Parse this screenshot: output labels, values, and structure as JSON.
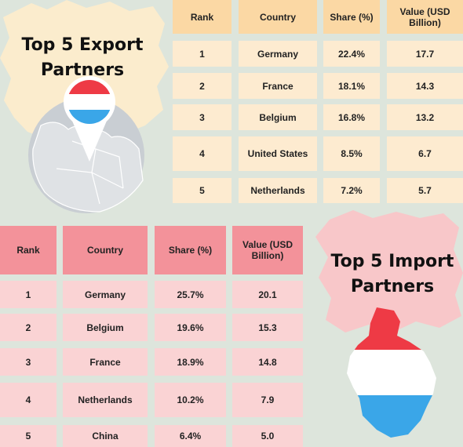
{
  "export": {
    "title_line1": "Top 5 Export",
    "title_line2": "Partners",
    "headers": [
      "Rank",
      "Country",
      "Share (%)",
      "Value (USD Billion)"
    ],
    "rows": [
      [
        "1",
        "Germany",
        "22.4%",
        "17.7"
      ],
      [
        "2",
        "France",
        "18.1%",
        "14.3"
      ],
      [
        "3",
        "Belgium",
        "16.8%",
        "13.2"
      ],
      [
        "4",
        "United States",
        "8.5%",
        "6.7"
      ],
      [
        "5",
        "Netherlands",
        "7.2%",
        "5.7"
      ]
    ]
  },
  "import": {
    "title_line1": "Top 5 Import",
    "title_line2": "Partners",
    "headers": [
      "Rank",
      "Country",
      "Share (%)",
      "Value (USD Billion)"
    ],
    "rows": [
      [
        "1",
        "Germany",
        "25.7%",
        "20.1"
      ],
      [
        "2",
        "Belgium",
        "19.6%",
        "15.3"
      ],
      [
        "3",
        "France",
        "18.9%",
        "14.8"
      ],
      [
        "4",
        "Netherlands",
        "10.2%",
        "7.9"
      ],
      [
        "5",
        "China",
        "6.4%",
        "5.0"
      ]
    ]
  },
  "colors": {
    "background": "#dde5dc",
    "export_header": "#fbd8a4",
    "export_cell": "#fdebd0",
    "import_header": "#f3929a",
    "import_cell": "#fad3d4",
    "flag_red": "#ee3a45",
    "flag_white": "#ffffff",
    "flag_blue": "#3aa6e8"
  },
  "icons": {
    "map_pin": "map-pin-flag-icon",
    "country_map": "luxembourg-flag-map-icon"
  }
}
